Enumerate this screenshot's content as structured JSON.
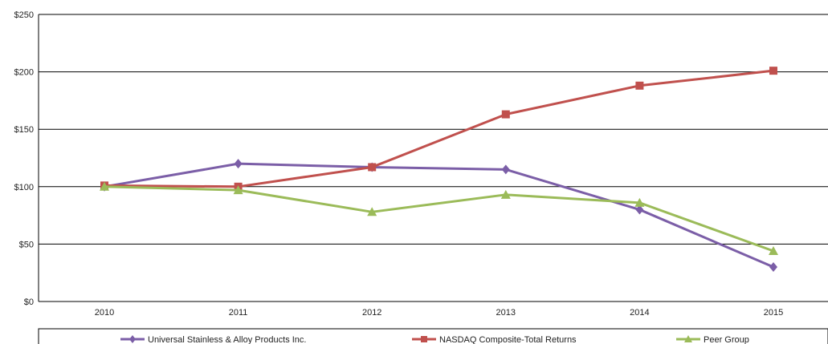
{
  "chart_data": {
    "type": "line",
    "x": [
      "2010",
      "2011",
      "2012",
      "2013",
      "2014",
      "2015"
    ],
    "ylim": [
      0,
      250
    ],
    "yticks": [
      0,
      50,
      100,
      150,
      200,
      250
    ],
    "ytick_labels": [
      "$0",
      "$50",
      "$100",
      "$150",
      "$200",
      "$250"
    ],
    "grid": "horizontal",
    "legend_position": "bottom",
    "series": [
      {
        "name": "Universal Stainless & Alloy Products Inc.",
        "color": "#7b5ea7",
        "marker": "diamond",
        "values": [
          100,
          120,
          117,
          115,
          80,
          30
        ]
      },
      {
        "name": "NASDAQ Composite-Total Returns",
        "color": "#c0504d",
        "marker": "square",
        "values": [
          101,
          100,
          117,
          163,
          188,
          201
        ]
      },
      {
        "name": "Peer Group",
        "color": "#9bbb59",
        "marker": "triangle",
        "values": [
          100,
          97,
          78,
          93,
          86,
          44
        ]
      }
    ]
  }
}
